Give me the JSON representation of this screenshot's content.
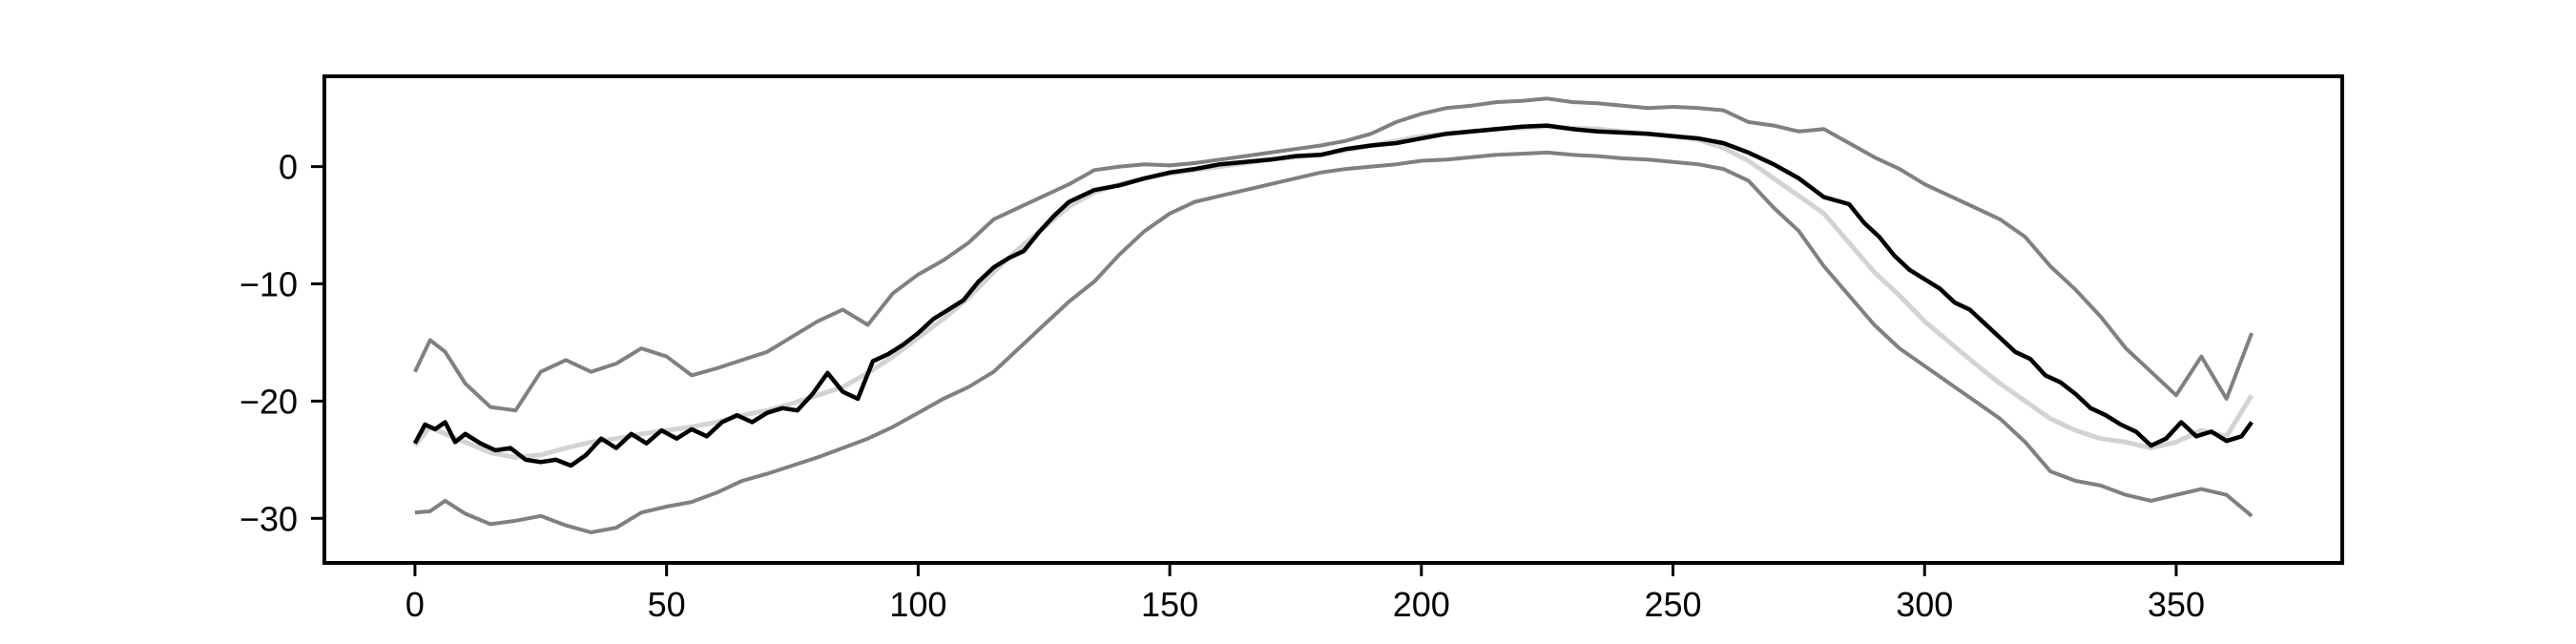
{
  "chart_data": {
    "type": "line",
    "title": "",
    "xlabel": "",
    "ylabel": "",
    "xlim": [
      -18,
      383
    ],
    "ylim": [
      -33.8,
      7.7
    ],
    "xticks": [
      0,
      50,
      100,
      150,
      200,
      250,
      300,
      350
    ],
    "yticks": [
      -30,
      -20,
      -10,
      0
    ],
    "xtick_labels": [
      "0",
      "50",
      "100",
      "150",
      "200",
      "250",
      "300",
      "350"
    ],
    "ytick_labels": [
      "−30",
      "−20",
      "−10",
      "0"
    ],
    "grid": false,
    "legend": "none",
    "colors": {
      "main": "#000000",
      "band": "#808080",
      "smooth": "#d3d3d3"
    },
    "series": [
      {
        "role": "upper",
        "color": "#808080",
        "x": [
          0,
          3,
          6,
          10,
          15,
          20,
          25,
          30,
          35,
          40,
          45,
          50,
          55,
          60,
          65,
          70,
          75,
          80,
          85,
          90,
          95,
          100,
          105,
          110,
          115,
          120,
          125,
          130,
          135,
          140,
          145,
          150,
          155,
          160,
          165,
          170,
          175,
          180,
          185,
          190,
          195,
          200,
          205,
          210,
          215,
          220,
          225,
          230,
          235,
          240,
          245,
          250,
          255,
          260,
          265,
          270,
          275,
          280,
          285,
          290,
          295,
          300,
          305,
          310,
          315,
          320,
          325,
          330,
          335,
          340,
          345,
          350,
          355,
          360,
          365
        ],
        "y": [
          -17.5,
          -14.8,
          -15.8,
          -18.5,
          -20.5,
          -20.8,
          -17.5,
          -16.5,
          -17.5,
          -16.8,
          -15.5,
          -16.2,
          -17.8,
          -17.2,
          -16.5,
          -15.8,
          -14.5,
          -13.2,
          -12.2,
          -13.5,
          -10.8,
          -9.2,
          -8.0,
          -6.5,
          -4.5,
          -3.5,
          -2.5,
          -1.5,
          -0.3,
          0.0,
          0.2,
          0.1,
          0.3,
          0.6,
          0.9,
          1.2,
          1.5,
          1.8,
          2.2,
          2.8,
          3.8,
          4.5,
          5.0,
          5.2,
          5.5,
          5.6,
          5.8,
          5.5,
          5.4,
          5.2,
          5.0,
          5.1,
          5.0,
          4.8,
          3.8,
          3.5,
          3.0,
          3.2,
          2.0,
          0.8,
          -0.2,
          -1.5,
          -2.5,
          -3.5,
          -4.5,
          -6.0,
          -8.5,
          -10.5,
          -12.8,
          -15.5,
          -17.5,
          -19.5,
          -16.2,
          -19.8,
          -14.2
        ]
      },
      {
        "role": "lower",
        "color": "#808080",
        "x": [
          0,
          3,
          6,
          10,
          15,
          20,
          25,
          30,
          35,
          40,
          45,
          50,
          55,
          60,
          65,
          70,
          75,
          80,
          85,
          90,
          95,
          100,
          105,
          110,
          115,
          120,
          125,
          130,
          135,
          140,
          145,
          150,
          155,
          160,
          165,
          170,
          175,
          180,
          185,
          190,
          195,
          200,
          205,
          210,
          215,
          220,
          225,
          230,
          235,
          240,
          245,
          250,
          255,
          260,
          265,
          270,
          275,
          280,
          285,
          290,
          295,
          300,
          305,
          310,
          315,
          320,
          325,
          330,
          335,
          340,
          345,
          350,
          355,
          360,
          365
        ],
        "y": [
          -29.5,
          -29.4,
          -28.5,
          -29.6,
          -30.5,
          -30.2,
          -29.8,
          -30.6,
          -31.2,
          -30.8,
          -29.5,
          -29.0,
          -28.6,
          -27.8,
          -26.8,
          -26.2,
          -25.5,
          -24.8,
          -24.0,
          -23.2,
          -22.2,
          -21.0,
          -19.8,
          -18.8,
          -17.5,
          -15.5,
          -13.5,
          -11.5,
          -9.8,
          -7.5,
          -5.5,
          -4.0,
          -3.0,
          -2.5,
          -2.0,
          -1.5,
          -1.0,
          -0.5,
          -0.2,
          0.0,
          0.2,
          0.5,
          0.6,
          0.8,
          1.0,
          1.1,
          1.2,
          1.0,
          0.9,
          0.7,
          0.6,
          0.4,
          0.2,
          -0.2,
          -1.2,
          -3.5,
          -5.5,
          -8.5,
          -11.0,
          -13.5,
          -15.5,
          -17.0,
          -18.5,
          -20.0,
          -21.5,
          -23.5,
          -26.0,
          -26.8,
          -27.2,
          -28.0,
          -28.5,
          -28.0,
          -27.5,
          -28.0,
          -29.8
        ]
      },
      {
        "role": "smooth",
        "color": "#d3d3d3",
        "x": [
          0,
          3,
          6,
          10,
          15,
          20,
          25,
          30,
          35,
          40,
          45,
          50,
          55,
          60,
          65,
          70,
          75,
          80,
          85,
          90,
          95,
          100,
          105,
          110,
          115,
          120,
          125,
          130,
          135,
          140,
          145,
          150,
          155,
          160,
          165,
          170,
          175,
          180,
          185,
          190,
          195,
          200,
          205,
          210,
          215,
          220,
          225,
          230,
          235,
          240,
          245,
          250,
          255,
          260,
          265,
          270,
          275,
          280,
          285,
          290,
          295,
          300,
          305,
          310,
          315,
          320,
          325,
          330,
          335,
          340,
          345,
          350,
          355,
          360,
          365
        ],
        "y": [
          -23.8,
          -22.2,
          -22.8,
          -23.5,
          -24.4,
          -24.8,
          -24.6,
          -24.0,
          -23.5,
          -23.2,
          -22.8,
          -22.5,
          -22.2,
          -21.8,
          -21.2,
          -20.8,
          -20.2,
          -19.5,
          -18.8,
          -17.6,
          -16.2,
          -14.6,
          -13.0,
          -11.2,
          -9.0,
          -7.0,
          -5.2,
          -3.4,
          -2.2,
          -1.5,
          -1.0,
          -0.6,
          -0.3,
          0.0,
          0.3,
          0.6,
          0.8,
          1.0,
          1.4,
          1.8,
          2.2,
          2.6,
          2.8,
          3.0,
          3.2,
          3.3,
          3.4,
          3.3,
          3.2,
          3.0,
          2.8,
          2.6,
          2.3,
          1.6,
          0.5,
          -1.0,
          -2.5,
          -4.0,
          -6.5,
          -9.0,
          -11.0,
          -13.2,
          -15.0,
          -16.8,
          -18.5,
          -20.0,
          -21.5,
          -22.5,
          -23.2,
          -23.5,
          -24.0,
          -23.5,
          -22.5,
          -23.0,
          -19.5
        ]
      },
      {
        "role": "main",
        "color": "#000000",
        "x": [
          0,
          2,
          4,
          6,
          8,
          10,
          13,
          16,
          19,
          22,
          25,
          28,
          31,
          34,
          37,
          40,
          43,
          46,
          49,
          52,
          55,
          58,
          61,
          64,
          67,
          70,
          73,
          76,
          79,
          82,
          85,
          88,
          91,
          94,
          97,
          100,
          103,
          106,
          109,
          112,
          115,
          118,
          121,
          124,
          127,
          130,
          135,
          140,
          145,
          150,
          155,
          160,
          165,
          170,
          175,
          180,
          185,
          190,
          195,
          200,
          205,
          210,
          215,
          220,
          225,
          230,
          235,
          240,
          245,
          250,
          255,
          260,
          265,
          270,
          275,
          280,
          285,
          288,
          291,
          294,
          297,
          300,
          303,
          306,
          309,
          312,
          315,
          318,
          321,
          324,
          327,
          330,
          333,
          336,
          339,
          342,
          345,
          348,
          351,
          354,
          357,
          360,
          363,
          365
        ],
        "y": [
          -23.6,
          -22.0,
          -22.4,
          -21.8,
          -23.5,
          -22.8,
          -23.6,
          -24.2,
          -24.0,
          -25.0,
          -25.2,
          -25.0,
          -25.5,
          -24.6,
          -23.2,
          -24.0,
          -22.8,
          -23.6,
          -22.5,
          -23.2,
          -22.4,
          -23.0,
          -21.8,
          -21.2,
          -21.8,
          -21.0,
          -20.6,
          -20.8,
          -19.4,
          -17.6,
          -19.2,
          -19.8,
          -16.6,
          -16.0,
          -15.2,
          -14.2,
          -13.0,
          -12.2,
          -11.4,
          -9.8,
          -8.6,
          -7.8,
          -7.2,
          -5.6,
          -4.2,
          -3.0,
          -2.0,
          -1.6,
          -1.0,
          -0.5,
          -0.2,
          0.2,
          0.4,
          0.6,
          0.9,
          1.0,
          1.5,
          1.8,
          2.0,
          2.4,
          2.8,
          3.0,
          3.2,
          3.4,
          3.5,
          3.2,
          3.0,
          2.9,
          2.8,
          2.6,
          2.4,
          2.0,
          1.2,
          0.2,
          -1.0,
          -2.6,
          -3.2,
          -4.8,
          -6.0,
          -7.6,
          -8.8,
          -9.6,
          -10.4,
          -11.6,
          -12.2,
          -13.4,
          -14.6,
          -15.8,
          -16.4,
          -17.8,
          -18.4,
          -19.4,
          -20.6,
          -21.2,
          -22.0,
          -22.6,
          -23.8,
          -23.2,
          -21.8,
          -23.0,
          -22.6,
          -23.4,
          -23.0,
          -21.8
        ]
      }
    ]
  }
}
